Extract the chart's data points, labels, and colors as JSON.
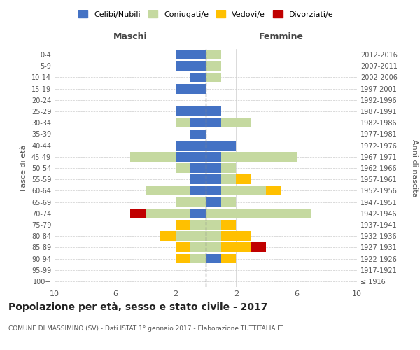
{
  "age_groups": [
    "100+",
    "95-99",
    "90-94",
    "85-89",
    "80-84",
    "75-79",
    "70-74",
    "65-69",
    "60-64",
    "55-59",
    "50-54",
    "45-49",
    "40-44",
    "35-39",
    "30-34",
    "25-29",
    "20-24",
    "15-19",
    "10-14",
    "5-9",
    "0-4"
  ],
  "birth_years": [
    "≤ 1916",
    "1917-1921",
    "1922-1926",
    "1927-1931",
    "1932-1936",
    "1937-1941",
    "1942-1946",
    "1947-1951",
    "1952-1956",
    "1957-1961",
    "1962-1966",
    "1967-1971",
    "1972-1976",
    "1977-1981",
    "1982-1986",
    "1987-1991",
    "1992-1996",
    "1997-2001",
    "2002-2006",
    "2007-2011",
    "2012-2016"
  ],
  "male": {
    "celibi": [
      0,
      0,
      0,
      0,
      0,
      0,
      1,
      0,
      1,
      1,
      1,
      2,
      2,
      1,
      1,
      2,
      0,
      2,
      1,
      2,
      2
    ],
    "coniugati": [
      0,
      0,
      1,
      1,
      2,
      1,
      3,
      2,
      3,
      0,
      1,
      3,
      0,
      0,
      1,
      0,
      0,
      0,
      0,
      0,
      0
    ],
    "vedovi": [
      0,
      0,
      1,
      1,
      1,
      1,
      0,
      0,
      0,
      0,
      0,
      0,
      0,
      0,
      0,
      0,
      0,
      0,
      0,
      0,
      0
    ],
    "divorziati": [
      0,
      0,
      0,
      0,
      0,
      0,
      1,
      0,
      0,
      0,
      0,
      0,
      0,
      0,
      0,
      0,
      0,
      0,
      0,
      0,
      0
    ]
  },
  "female": {
    "nubili": [
      0,
      0,
      1,
      0,
      0,
      0,
      0,
      1,
      1,
      1,
      1,
      1,
      2,
      0,
      1,
      1,
      0,
      0,
      0,
      0,
      0
    ],
    "coniugate": [
      0,
      0,
      0,
      1,
      1,
      1,
      7,
      1,
      3,
      1,
      1,
      5,
      0,
      0,
      2,
      0,
      0,
      0,
      1,
      1,
      1
    ],
    "vedove": [
      0,
      0,
      1,
      2,
      2,
      1,
      0,
      0,
      1,
      1,
      0,
      0,
      0,
      0,
      0,
      0,
      0,
      0,
      0,
      0,
      0
    ],
    "divorziate": [
      0,
      0,
      0,
      1,
      0,
      0,
      0,
      0,
      0,
      0,
      0,
      0,
      0,
      0,
      0,
      0,
      0,
      0,
      0,
      0,
      0
    ]
  },
  "colors": {
    "celibi": "#4472c4",
    "coniugati": "#c5d9a0",
    "vedovi": "#ffc000",
    "divorziati": "#c00000"
  },
  "title": "Popolazione per età, sesso e stato civile - 2017",
  "subtitle": "COMUNE DI MASSIMINO (SV) - Dati ISTAT 1° gennaio 2017 - Elaborazione TUTTITALIA.IT",
  "ylabel_left": "Fasce di età",
  "ylabel_right": "Anni di nascita",
  "xlabel_left": "Maschi",
  "xlabel_right": "Femmine",
  "legend_labels": [
    "Celibi/Nubili",
    "Coniugati/e",
    "Vedovi/e",
    "Divorziati/e"
  ],
  "xlim": 10,
  "background_color": "#ffffff",
  "grid_color": "#cccccc"
}
